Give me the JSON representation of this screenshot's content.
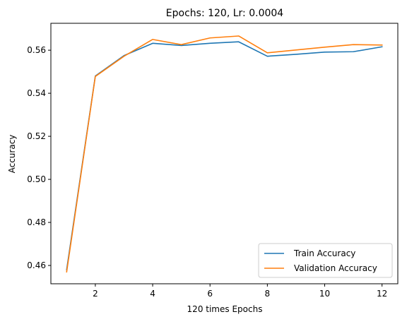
{
  "chart_data": {
    "type": "line",
    "title": "Epochs: 120, Lr: 0.0004",
    "xlabel": "120 times Epochs",
    "ylabel": "Accuracy",
    "x": [
      1,
      2,
      3,
      4,
      5,
      6,
      7,
      8,
      9,
      10,
      11,
      12
    ],
    "xlim": [
      0.45,
      12.55
    ],
    "ylim": [
      0.4515,
      0.5725
    ],
    "xticks": [
      2,
      4,
      6,
      8,
      10,
      12
    ],
    "xtick_labels": [
      "2",
      "4",
      "6",
      "8",
      "10",
      "12"
    ],
    "yticks": [
      0.46,
      0.48,
      0.5,
      0.52,
      0.54,
      0.56
    ],
    "ytick_labels": [
      "0.46",
      "0.48",
      "0.50",
      "0.52",
      "0.54",
      "0.56"
    ],
    "grid": false,
    "legend_position": "lower-right",
    "series": [
      {
        "name": "Train Accuracy",
        "color": "#1f77b4",
        "values": [
          0.458,
          0.548,
          0.5575,
          0.5632,
          0.5622,
          0.5632,
          0.5639,
          0.5572,
          0.5581,
          0.5591,
          0.5593,
          0.5616
        ]
      },
      {
        "name": "Validation Accuracy",
        "color": "#ff7f0e",
        "values": [
          0.457,
          0.5478,
          0.5572,
          0.565,
          0.5626,
          0.5657,
          0.5666,
          0.5588,
          0.5601,
          0.5614,
          0.5626,
          0.5624
        ]
      }
    ]
  }
}
